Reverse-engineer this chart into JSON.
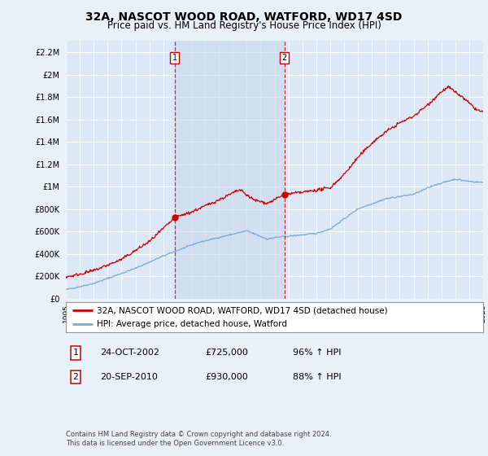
{
  "title": "32A, NASCOT WOOD ROAD, WATFORD, WD17 4SD",
  "subtitle": "Price paid vs. HM Land Registry's House Price Index (HPI)",
  "ylim": [
    0,
    2300000
  ],
  "yticks": [
    0,
    200000,
    400000,
    600000,
    800000,
    1000000,
    1200000,
    1400000,
    1600000,
    1800000,
    2000000,
    2200000
  ],
  "bg_color": "#e8f0f8",
  "plot_bg": "#dce8f5",
  "shade_color": "#c8d8ee",
  "red_color": "#cc0000",
  "blue_color": "#7aaad0",
  "sale1_year": 2002.82,
  "sale1_price": 725000,
  "sale2_year": 2010.72,
  "sale2_price": 930000,
  "legend_line1": "32A, NASCOT WOOD ROAD, WATFORD, WD17 4SD (detached house)",
  "legend_line2": "HPI: Average price, detached house, Watford",
  "table_rows": [
    {
      "num": "1",
      "date": "24-OCT-2002",
      "price": "£725,000",
      "hpi": "96% ↑ HPI"
    },
    {
      "num": "2",
      "date": "20-SEP-2010",
      "price": "£930,000",
      "hpi": "88% ↑ HPI"
    }
  ],
  "footer": "Contains HM Land Registry data © Crown copyright and database right 2024.\nThis data is licensed under the Open Government Licence v3.0.",
  "xmin": 1995,
  "xmax": 2025
}
